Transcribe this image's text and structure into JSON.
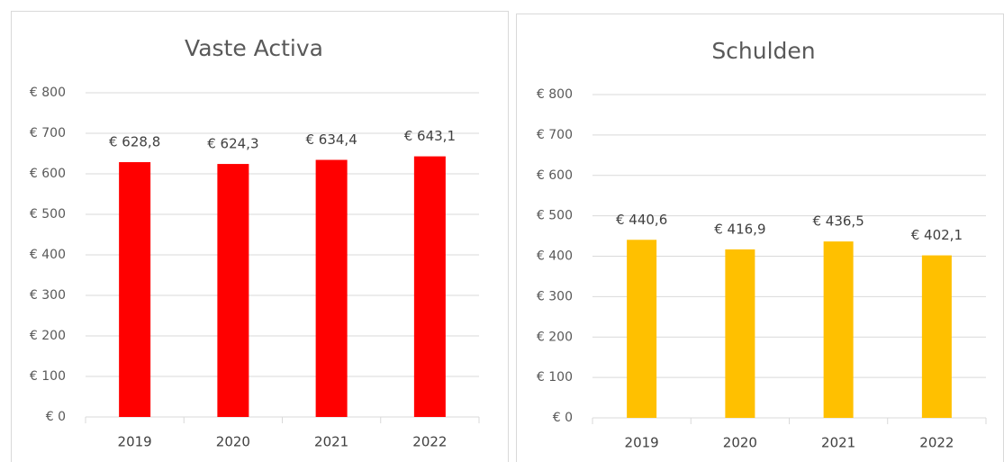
{
  "chart_data": [
    {
      "type": "bar",
      "title": "Vaste Activa",
      "categories": [
        "2019",
        "2020",
        "2021",
        "2022"
      ],
      "values": [
        628.8,
        624.3,
        634.4,
        643.1
      ],
      "value_labels": [
        "€ 628,8",
        "€ 624,3",
        "€ 634,4",
        "€ 643,1"
      ],
      "color": "#ff0000",
      "grid": true,
      "ylim": [
        0,
        800
      ],
      "yticks": [
        {
          "value": 0,
          "label": "€ 0"
        },
        {
          "value": 100,
          "label": "€ 100"
        },
        {
          "value": 200,
          "label": "€ 200"
        },
        {
          "value": 300,
          "label": "€ 300"
        },
        {
          "value": 400,
          "label": "€ 400"
        },
        {
          "value": 500,
          "label": "€ 500"
        },
        {
          "value": 600,
          "label": "€ 600"
        },
        {
          "value": 700,
          "label": "€ 700"
        },
        {
          "value": 800,
          "label": "€ 800"
        }
      ]
    },
    {
      "type": "bar",
      "title": "Schulden",
      "categories": [
        "2019",
        "2020",
        "2021",
        "2022"
      ],
      "values": [
        440.6,
        416.9,
        436.5,
        402.1
      ],
      "value_labels": [
        "€ 440,6",
        "€ 416,9",
        "€ 436,5",
        "€ 402,1"
      ],
      "color": "#ffc000",
      "grid": true,
      "ylim": [
        0,
        800
      ],
      "yticks": [
        {
          "value": 0,
          "label": "€ 0"
        },
        {
          "value": 100,
          "label": "€ 100"
        },
        {
          "value": 200,
          "label": "€ 200"
        },
        {
          "value": 300,
          "label": "€ 300"
        },
        {
          "value": 400,
          "label": "€ 400"
        },
        {
          "value": 500,
          "label": "€ 500"
        },
        {
          "value": 600,
          "label": "€ 600"
        },
        {
          "value": 700,
          "label": "€ 700"
        },
        {
          "value": 800,
          "label": "€ 800"
        }
      ]
    }
  ]
}
